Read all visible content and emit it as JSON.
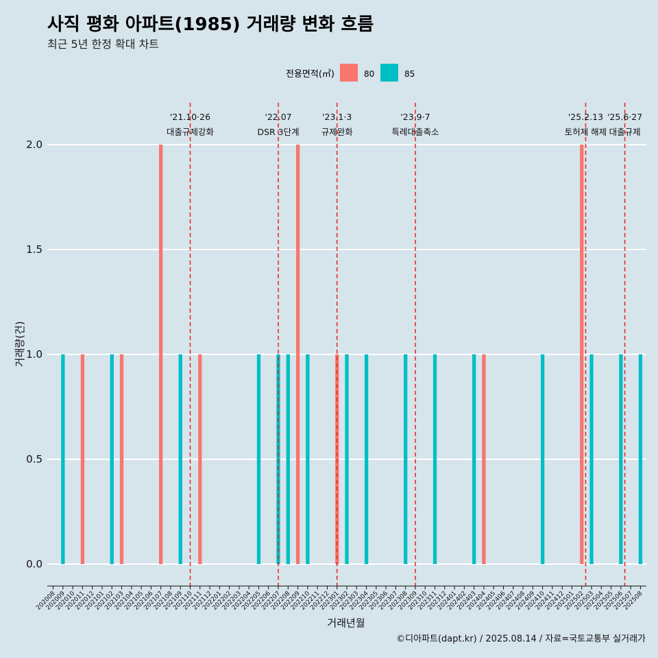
{
  "chart_data": {
    "type": "bar",
    "title": "사직 평화 아파트(1985) 거래량 변화 흐름",
    "subtitle": "최근 5년 한정 확대 차트",
    "xlabel": "거래년월",
    "ylabel": "거래량(건)",
    "ylim": [
      0,
      2
    ],
    "yticks": [
      "0.0",
      "0.5",
      "1.0",
      "1.5",
      "2.0"
    ],
    "legend": {
      "title": "전용면적(㎡)",
      "position": "top",
      "entries": [
        {
          "name": "80",
          "color": "#f8766d"
        },
        {
          "name": "85",
          "color": "#00bfc4"
        }
      ]
    },
    "categories": [
      "202008",
      "202009",
      "202010",
      "202011",
      "202012",
      "202101",
      "202102",
      "202103",
      "202104",
      "202105",
      "202106",
      "202107",
      "202108",
      "202109",
      "202110",
      "202111",
      "202112",
      "202201",
      "202202",
      "202203",
      "202204",
      "202205",
      "202206",
      "202207",
      "202208",
      "202209",
      "202210",
      "202211",
      "202212",
      "202301",
      "202302",
      "202303",
      "202304",
      "202305",
      "202306",
      "202307",
      "202308",
      "202309",
      "202310",
      "202311",
      "202312",
      "202401",
      "202402",
      "202403",
      "202404",
      "202405",
      "202406",
      "202407",
      "202408",
      "202409",
      "202410",
      "202411",
      "202412",
      "202501",
      "202502",
      "202503",
      "202504",
      "202505",
      "202506",
      "202507",
      "202508"
    ],
    "series": [
      {
        "name": "80",
        "color": "#f8766d",
        "values": [
          0,
          0,
          0,
          1,
          0,
          0,
          0,
          1,
          0,
          0,
          0,
          2,
          0,
          0,
          0,
          1,
          0,
          0,
          0,
          0,
          0,
          0,
          0,
          0,
          0,
          2,
          0,
          0,
          0,
          1,
          0,
          0,
          0,
          0,
          0,
          0,
          0,
          0,
          0,
          0,
          0,
          0,
          0,
          0,
          1,
          0,
          0,
          0,
          0,
          0,
          0,
          0,
          0,
          0,
          2,
          0,
          0,
          0,
          0,
          0,
          0
        ]
      },
      {
        "name": "85",
        "color": "#00bfc4",
        "values": [
          0,
          1,
          0,
          0,
          0,
          0,
          1,
          0,
          0,
          0,
          0,
          0,
          0,
          1,
          0,
          0,
          0,
          0,
          0,
          0,
          0,
          1,
          0,
          1,
          1,
          0,
          1,
          0,
          0,
          0,
          1,
          0,
          1,
          0,
          0,
          0,
          1,
          0,
          0,
          1,
          0,
          0,
          0,
          1,
          0,
          0,
          0,
          0,
          0,
          0,
          1,
          0,
          0,
          0,
          0,
          1,
          0,
          0,
          1,
          0,
          1
        ]
      }
    ],
    "events": [
      {
        "position": 14.0,
        "date": "'21.10·26",
        "label": "대출규제강화",
        "small": false
      },
      {
        "position": 23.0,
        "date": "'22.07",
        "label": "DSR 3단계",
        "small": false
      },
      {
        "position": 29.0,
        "date": "'23.1·3",
        "label": "규제완화",
        "small": false
      },
      {
        "position": 37.0,
        "date": "'23.9·7",
        "label": "특례대출축소",
        "small": false
      },
      {
        "position": 54.4,
        "date": "'25.2.13",
        "label": "토허제 해제",
        "small": true
      },
      {
        "position": 58.4,
        "date": "'25.6·27",
        "label": "대출규제",
        "small": false
      }
    ],
    "caption": "©디아파트(dapt.kr) / 2025.08.14 / 자료=국토교통부 실거래가"
  }
}
